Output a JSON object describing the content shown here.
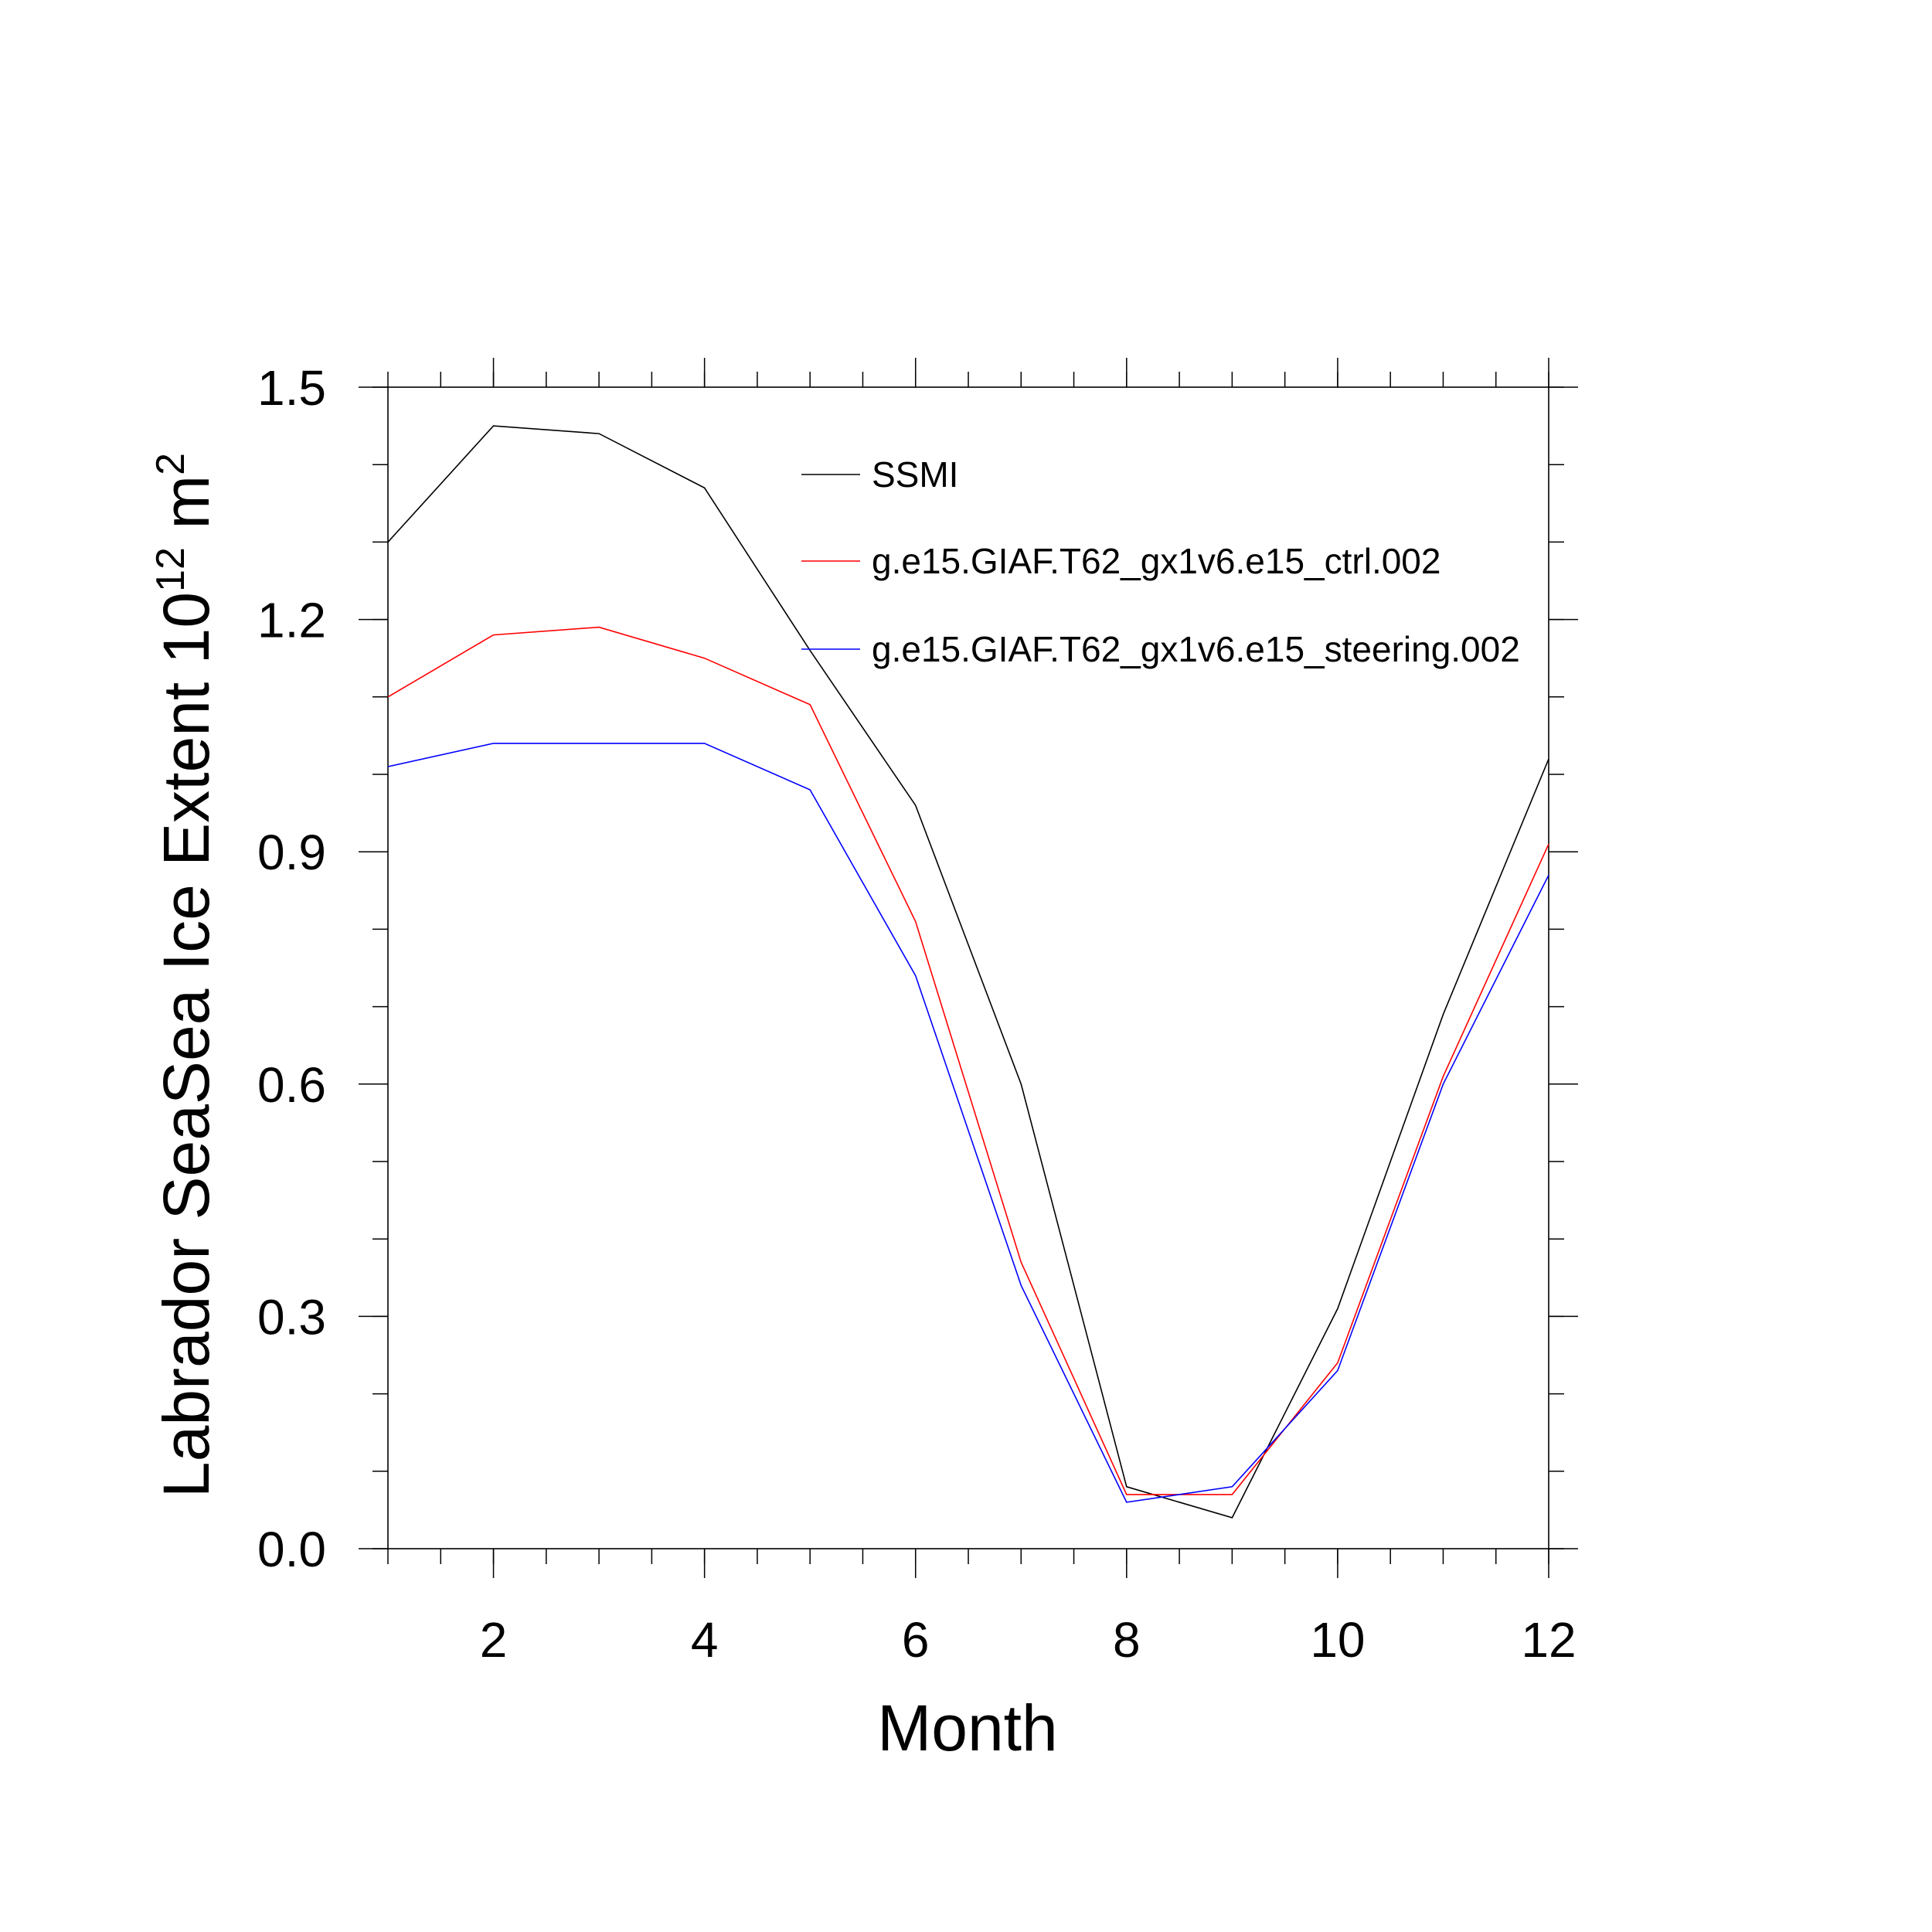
{
  "chart_data": {
    "type": "line",
    "xlabel": "Month",
    "ylabel": "Labrador SeaSea Ice Extent 10",
    "ylabel_sup1": "12",
    "ylabel_unit": " m",
    "ylabel_sup2": "2",
    "xlim": [
      1,
      12
    ],
    "ylim": [
      0.0,
      1.5
    ],
    "x_ticks": [
      2,
      4,
      6,
      8,
      10,
      12
    ],
    "x_tick_labels": [
      "2",
      "4",
      "6",
      "8",
      "10",
      "12"
    ],
    "y_ticks": [
      0.0,
      0.3,
      0.6,
      0.9,
      1.2,
      1.5
    ],
    "y_tick_labels": [
      "0.0",
      "0.3",
      "0.6",
      "0.9",
      "1.2",
      "1.5"
    ],
    "grid": false,
    "legend_position": "top-right",
    "x": [
      1,
      2,
      3,
      4,
      5,
      6,
      7,
      8,
      9,
      10,
      11,
      12
    ],
    "series": [
      {
        "name": "SSMI",
        "color": "#000000",
        "values": [
          1.3,
          1.45,
          1.44,
          1.37,
          1.16,
          0.96,
          0.6,
          0.08,
          0.04,
          0.31,
          0.69,
          1.02
        ]
      },
      {
        "name": "g.e15.GIAF.T62_gx1v6.e15_ctrl.002",
        "color": "#ff0000",
        "values": [
          1.1,
          1.18,
          1.19,
          1.15,
          1.09,
          0.81,
          0.37,
          0.07,
          0.07,
          0.24,
          0.61,
          0.91
        ]
      },
      {
        "name": "g.e15.GIAF.T62_gx1v6.e15_steering.002",
        "color": "#0000ff",
        "values": [
          1.01,
          1.04,
          1.04,
          1.04,
          0.98,
          0.74,
          0.34,
          0.06,
          0.08,
          0.23,
          0.6,
          0.87
        ]
      }
    ]
  }
}
